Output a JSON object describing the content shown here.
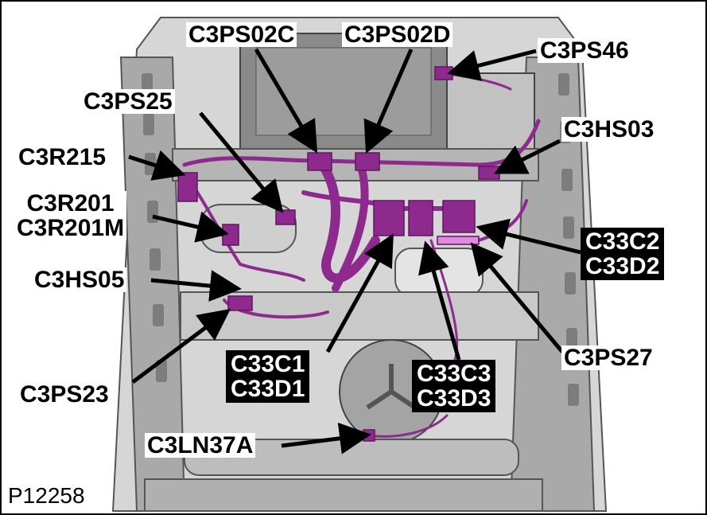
{
  "figure_id": "P12258",
  "colors": {
    "harness": "#8e2a8e",
    "harness_dark": "#5f1660",
    "frame_light": "#bdbdbd",
    "frame_mid": "#9a9a9a",
    "frame_dark": "#6e6e6e",
    "label_black": "#000000",
    "label_white": "#ffffff"
  },
  "labels": {
    "c3ps02c": "C3PS02C",
    "c3ps02d": "C3PS02D",
    "c3ps46": "C3PS46",
    "c3ps25": "C3PS25",
    "c3hs03": "C3HS03",
    "c3r215": "C3R215",
    "c3r201": [
      "C3R201",
      "C3R201M"
    ],
    "c3hs05": "C3HS05",
    "c33c2_d2": [
      "C33C2",
      "C33D2"
    ],
    "c3ps23": "C3PS23",
    "c33c1_d1": [
      "C33C1",
      "C33D1"
    ],
    "c33c3_d3": [
      "C33C3",
      "C33D3"
    ],
    "c3ps27": "C3PS27",
    "c3ln37a": "C3LN37A"
  }
}
